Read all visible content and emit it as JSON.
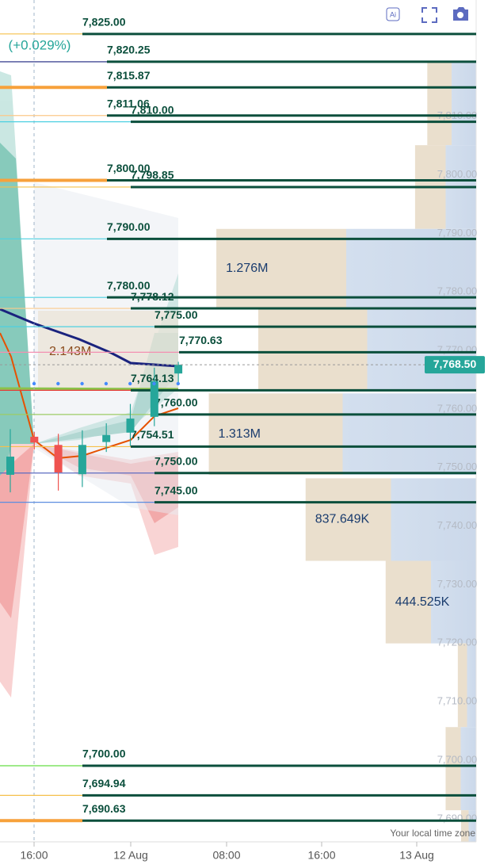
{
  "chart_data": {
    "type": "candlestick",
    "change_label": "(+0.029%)",
    "ylim": [
      7687.0,
      7830.8
    ],
    "yticks": [
      {
        "value": 7810,
        "label": "7,810.00"
      },
      {
        "value": 7800,
        "label": "7,800.00"
      },
      {
        "value": 7790,
        "label": "7,790.00"
      },
      {
        "value": 7780,
        "label": "7,780.00"
      },
      {
        "value": 7770,
        "label": "7,770.00"
      },
      {
        "value": 7760,
        "label": "7,760.00"
      },
      {
        "value": 7750,
        "label": "7,750.00"
      },
      {
        "value": 7740,
        "label": "7,740.00"
      },
      {
        "value": 7730,
        "label": "7,730.00"
      },
      {
        "value": 7720,
        "label": "7,720.00"
      },
      {
        "value": 7710,
        "label": "7,710.00"
      },
      {
        "value": 7700,
        "label": "7,700.00"
      },
      {
        "value": 7690,
        "label": "7,690.00"
      }
    ],
    "x_labels": [
      "16:00",
      "12 Aug",
      "08:00",
      "16:00",
      "13 Aug"
    ],
    "time_zone_label": "Your local time zone",
    "last_price": {
      "value": 7768.5,
      "label": "7,768.50"
    },
    "candles": [
      {
        "open": 7749.7,
        "high": 7757.5,
        "low": 7746.7,
        "close": 7752.8
      },
      {
        "open": 7756.2,
        "high": 7757.0,
        "low": 7754.0,
        "close": 7755.2
      },
      {
        "open": 7754.8,
        "high": 7756.7,
        "low": 7747.0,
        "close": 7750.1
      },
      {
        "open": 7749.8,
        "high": 7757.3,
        "low": 7747.6,
        "close": 7754.8
      },
      {
        "open": 7755.3,
        "high": 7758.5,
        "low": 7753.6,
        "close": 7756.5
      },
      {
        "open": 7756.9,
        "high": 7761.8,
        "low": 7754.6,
        "close": 7759.3
      },
      {
        "open": 7759.6,
        "high": 7768.0,
        "low": 7758.0,
        "close": 7765.7
      },
      {
        "open": 7767.0,
        "high": 7769.0,
        "low": 7765.5,
        "close": 7768.5
      }
    ],
    "up_color": "#26a69a",
    "down_color": "#ef5350",
    "levels": [
      {
        "value": 7825,
        "label": "7,825.00",
        "color": "#f5c04a"
      },
      {
        "value": 7820.25,
        "label": "7,820.25",
        "color": "#1a237e"
      },
      {
        "value": 7815.87,
        "label": "7,815.87",
        "color": "#f7a13b"
      },
      {
        "value": 7811.06,
        "label": "7,811.06",
        "color": "#fbc98a"
      },
      {
        "value": 7810,
        "label": "7,810.00",
        "color": "#4dd0e1"
      },
      {
        "value": 7800,
        "label": "7,800.00",
        "color": "#f7a13b"
      },
      {
        "value": 7798.85,
        "label": "7,798.85",
        "color": "#f5c04a"
      },
      {
        "value": 7790,
        "label": "7,790.00",
        "color": "#4dd0e1"
      },
      {
        "value": 7780,
        "label": "7,780.00",
        "color": "#4dd0e1"
      },
      {
        "value": 7778.12,
        "label": "7,778.12",
        "color": "#fbc98a"
      },
      {
        "value": 7775,
        "label": "7,775.00",
        "color": "#4dd0e1"
      },
      {
        "value": 7770.63,
        "label": "7,770.63",
        "color": "#f48fb1"
      },
      {
        "value": 7764.13,
        "label": "7,764.13",
        "color": "#e53935"
      },
      {
        "value": 7760,
        "label": "7,760.00",
        "color": "#9ccc65"
      },
      {
        "value": 7754.51,
        "label": "7,754.51",
        "color": "#f5c04a"
      },
      {
        "value": 7750,
        "label": "7,750.00",
        "color": "#5c6bc0"
      },
      {
        "value": 7745,
        "label": "7,745.00",
        "color": "#5c8de0"
      },
      {
        "value": 7700,
        "label": "7,700.00",
        "color": "#66dd44"
      },
      {
        "value": 7694.94,
        "label": "7,694.94",
        "color": "#f5c04a"
      },
      {
        "value": 7690.63,
        "label": "7,690.63",
        "color": "#f7a13b"
      }
    ],
    "level_line_color": "#0b4f3c",
    "volume_profile": [
      {
        "low": 7806.0,
        "high": 7820.2,
        "value": 240000
      },
      {
        "low": 7791.7,
        "high": 7806.0,
        "value": 300000
      },
      {
        "low": 7778.2,
        "high": 7791.7,
        "value": 1276000,
        "value_label": "1.276M"
      },
      {
        "low": 7764.0,
        "high": 7778.2,
        "value": 1070000
      },
      {
        "low": 7749.7,
        "high": 7763.6,
        "value": 1313000,
        "value_label": "1.313M"
      },
      {
        "low": 7735.0,
        "high": 7749.1,
        "value": 837649,
        "value_label": "837.649K"
      },
      {
        "low": 7720.9,
        "high": 7735.0,
        "value": 444525,
        "value_label": "444.525K"
      },
      {
        "low": 7706.6,
        "high": 7720.9,
        "value": 90000
      },
      {
        "low": 7692.4,
        "high": 7706.6,
        "value": 150000
      },
      {
        "low": 7687.0,
        "high": 7692.4,
        "value": 74000
      }
    ],
    "session_volume": {
      "value": 2143000,
      "label": "2.143M"
    }
  }
}
